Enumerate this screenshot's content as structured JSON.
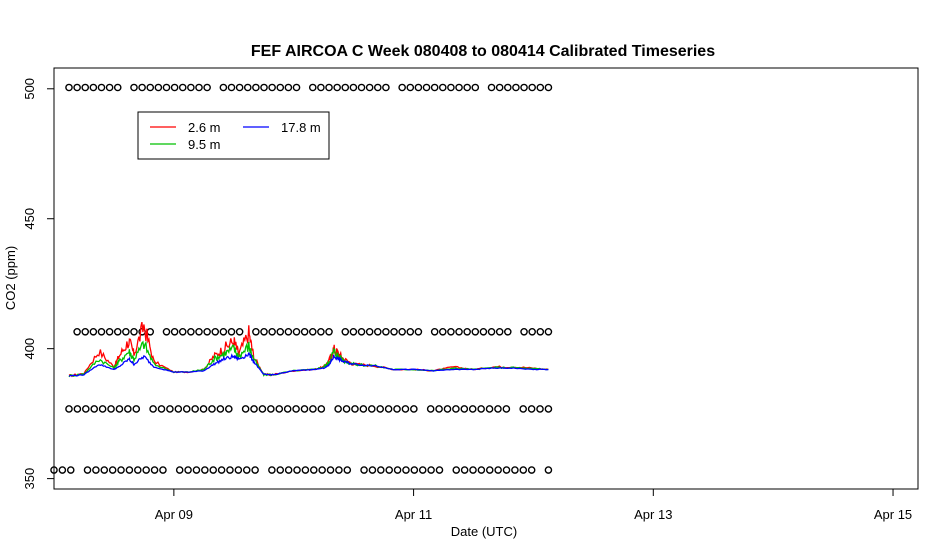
{
  "chart_data": {
    "type": "line",
    "title": "FEF AIRCOA C  Week 080408 to 080414  Calibrated Timeseries",
    "xlabel": "Date (UTC)",
    "ylabel": "CO2 (ppm)",
    "x_ticks": [
      {
        "label": "Apr 09",
        "day": 9
      },
      {
        "label": "Apr 11",
        "day": 11
      },
      {
        "label": "Apr 13",
        "day": 13
      },
      {
        "label": "Apr 15",
        "day": 15
      }
    ],
    "y_ticks": [
      350,
      400,
      450,
      500
    ],
    "xlim": [
      "2008-04-08 00:00",
      "2008-04-15 05:00"
    ],
    "ylim": [
      346,
      508
    ],
    "grid": false,
    "legend": {
      "placement": "top-left",
      "columns": 2
    },
    "series": [
      {
        "name": "2.6 m",
        "color": "#ff0000",
        "x": [
          "2008-04-08 03:00",
          "2008-04-08 06:00",
          "2008-04-08 09:00",
          "2008-04-08 12:00",
          "2008-04-08 13:00",
          "2008-04-08 15:00",
          "2008-04-08 16:00",
          "2008-04-08 18:00",
          "2008-04-08 20:00",
          "2008-04-09 00:00",
          "2008-04-09 03:00",
          "2008-04-09 06:00",
          "2008-04-09 08:00",
          "2008-04-09 10:00",
          "2008-04-09 12:00",
          "2008-04-09 13:00",
          "2008-04-09 15:00",
          "2008-04-09 16:00",
          "2008-04-09 18:00",
          "2008-04-09 20:00",
          "2008-04-10 00:00",
          "2008-04-10 04:00",
          "2008-04-10 06:00",
          "2008-04-10 07:00",
          "2008-04-10 08:00",
          "2008-04-10 09:00",
          "2008-04-10 10:00",
          "2008-04-10 12:00",
          "2008-04-10 16:00",
          "2008-04-10 20:00",
          "2008-04-11 00:00",
          "2008-04-11 04:00",
          "2008-04-11 08:00",
          "2008-04-11 12:00",
          "2008-04-11 16:00",
          "2008-04-11 20:00",
          "2008-04-12 00:00",
          "2008-04-12 03:00"
        ],
        "y": [
          389.5,
          390.5,
          399,
          393,
          397,
          403,
          398,
          409,
          395,
          391,
          391,
          392,
          397,
          400,
          403,
          398,
          406,
          397,
          390,
          390,
          391.5,
          392,
          393,
          395,
          400,
          398,
          396,
          394,
          393.5,
          392,
          392,
          391.5,
          393,
          392,
          393,
          393,
          392.5,
          392
        ]
      },
      {
        "name": "9.5 m",
        "color": "#00c000",
        "x": [
          "2008-04-08 03:00",
          "2008-04-08 06:00",
          "2008-04-08 09:00",
          "2008-04-08 12:00",
          "2008-04-08 13:00",
          "2008-04-08 15:00",
          "2008-04-08 16:00",
          "2008-04-08 18:00",
          "2008-04-08 20:00",
          "2008-04-09 00:00",
          "2008-04-09 03:00",
          "2008-04-09 06:00",
          "2008-04-09 08:00",
          "2008-04-09 10:00",
          "2008-04-09 12:00",
          "2008-04-09 13:00",
          "2008-04-09 15:00",
          "2008-04-09 16:00",
          "2008-04-09 18:00",
          "2008-04-09 20:00",
          "2008-04-10 00:00",
          "2008-04-10 04:00",
          "2008-04-10 06:00",
          "2008-04-10 07:00",
          "2008-04-10 08:00",
          "2008-04-10 09:00",
          "2008-04-10 10:00",
          "2008-04-10 12:00",
          "2008-04-10 16:00",
          "2008-04-10 20:00",
          "2008-04-11 00:00",
          "2008-04-11 04:00",
          "2008-04-11 08:00",
          "2008-04-11 12:00",
          "2008-04-11 16:00",
          "2008-04-11 20:00",
          "2008-04-12 00:00",
          "2008-04-12 03:00"
        ],
        "y": [
          389.5,
          390.3,
          396,
          392.5,
          395,
          399,
          396,
          402,
          394,
          391,
          391,
          392,
          396,
          398,
          400,
          397,
          401,
          396,
          390,
          390,
          391.5,
          392,
          393,
          394.5,
          399,
          397,
          395.5,
          394,
          393.5,
          392,
          392,
          391.5,
          392.5,
          392,
          392.7,
          392.7,
          392.3,
          392
        ]
      },
      {
        "name": "17.8 m",
        "color": "#0000ff",
        "x": [
          "2008-04-08 03:00",
          "2008-04-08 06:00",
          "2008-04-08 09:00",
          "2008-04-08 12:00",
          "2008-04-08 13:00",
          "2008-04-08 15:00",
          "2008-04-08 16:00",
          "2008-04-08 18:00",
          "2008-04-08 20:00",
          "2008-04-09 00:00",
          "2008-04-09 03:00",
          "2008-04-09 06:00",
          "2008-04-09 08:00",
          "2008-04-09 10:00",
          "2008-04-09 12:00",
          "2008-04-09 13:00",
          "2008-04-09 15:00",
          "2008-04-09 16:00",
          "2008-04-09 18:00",
          "2008-04-09 20:00",
          "2008-04-10 00:00",
          "2008-04-10 04:00",
          "2008-04-10 06:00",
          "2008-04-10 07:00",
          "2008-04-10 08:00",
          "2008-04-10 09:00",
          "2008-04-10 10:00",
          "2008-04-10 12:00",
          "2008-04-10 16:00",
          "2008-04-10 20:00",
          "2008-04-11 00:00",
          "2008-04-11 04:00",
          "2008-04-11 08:00",
          "2008-04-11 12:00",
          "2008-04-11 16:00",
          "2008-04-11 20:00",
          "2008-04-12 00:00",
          "2008-04-12 03:00"
        ],
        "y": [
          389.5,
          390,
          394,
          392,
          393,
          396,
          394,
          397,
          393,
          391,
          391,
          391.5,
          394,
          396,
          397,
          396,
          398,
          395,
          390,
          390,
          391.5,
          392,
          392.5,
          393.5,
          397,
          396,
          395,
          394,
          393.5,
          392,
          392,
          391.5,
          392,
          392,
          392.5,
          392.5,
          392,
          392
        ]
      }
    ],
    "flag_rows": [
      {
        "y": 500.5,
        "x_start": "2008-04-08 03:00",
        "x_end": "2008-04-12 03:00",
        "count": 60
      },
      {
        "y": 406.5,
        "x_start": "2008-04-08 03:00",
        "x_end": "2008-04-12 03:00",
        "count": 60
      },
      {
        "y": 376.8,
        "x_start": "2008-04-08 03:00",
        "x_end": "2008-04-12 03:00",
        "count": 58
      },
      {
        "y": 353.3,
        "x_start": "2008-04-08 00:00",
        "x_end": "2008-04-12 03:00",
        "count": 60
      }
    ]
  }
}
